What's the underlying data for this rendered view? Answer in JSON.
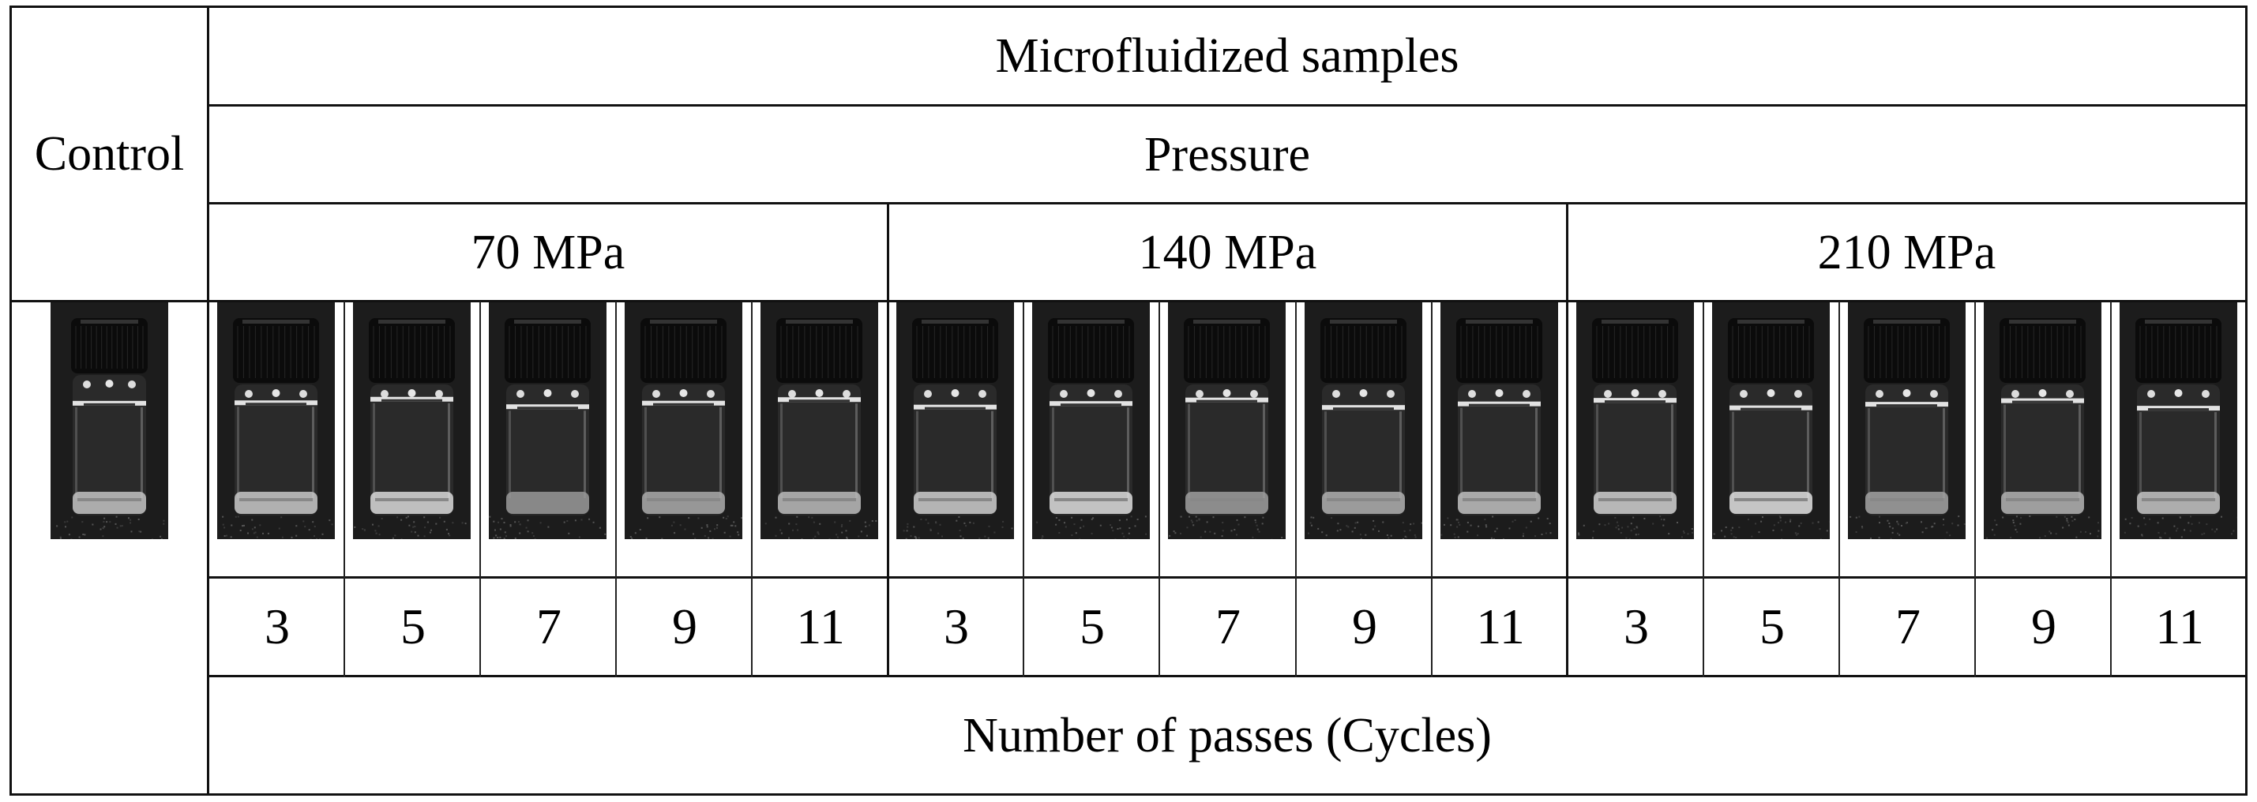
{
  "table": {
    "control_label": "Control",
    "header_title": "Microfluidized samples",
    "header_subtitle": "Pressure",
    "pressure_groups": [
      {
        "label": "70 MPa",
        "passes": [
          "3",
          "5",
          "7",
          "9",
          "11"
        ]
      },
      {
        "label": "140 MPa",
        "passes": [
          "3",
          "5",
          "7",
          "9",
          "11"
        ]
      },
      {
        "label": "210 MPa",
        "passes": [
          "3",
          "5",
          "7",
          "9",
          "11"
        ]
      }
    ],
    "footer_label": "Number of passes (Cycles)",
    "images": {
      "control": "vial-photo-control",
      "samples": [
        "vial-photo-70MPa-3",
        "vial-photo-70MPa-5",
        "vial-photo-70MPa-7",
        "vial-photo-70MPa-9",
        "vial-photo-70MPa-11",
        "vial-photo-140MPa-3",
        "vial-photo-140MPa-5",
        "vial-photo-140MPa-7",
        "vial-photo-140MPa-9",
        "vial-photo-140MPa-11",
        "vial-photo-210MPa-3",
        "vial-photo-210MPa-5",
        "vial-photo-210MPa-7",
        "vial-photo-210MPa-9",
        "vial-photo-210MPa-11"
      ]
    }
  },
  "colors": {
    "line": "#111111",
    "photo_background": "#1b1b1b",
    "cap": "#0c0c0c",
    "highlight": "#e8e8e8"
  }
}
